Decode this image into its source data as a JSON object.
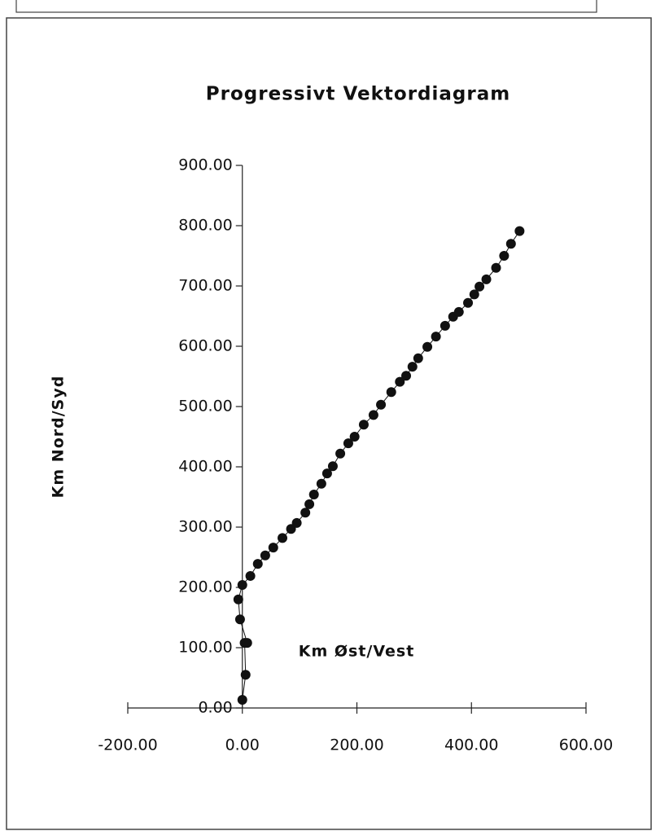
{
  "chart_data": {
    "type": "scatter",
    "title": "Progressivt Vektordiagram",
    "x_label": "Km Øst/Vest",
    "y_label": "Km Nord/Syd",
    "x": [
      0,
      5.7,
      4,
      8.5,
      -4,
      -7,
      0,
      14,
      27,
      40,
      54,
      70,
      85,
      95,
      110,
      117,
      125,
      138,
      148,
      158,
      171,
      185,
      196,
      212,
      229,
      242,
      260,
      275,
      286,
      297,
      307,
      323,
      338,
      354,
      368,
      378,
      394,
      405,
      414,
      426,
      443,
      457,
      469,
      484
    ],
    "values": [
      13.5,
      55,
      108,
      108,
      147,
      180,
      204,
      219,
      239,
      253,
      266,
      282,
      297,
      307,
      324,
      338,
      354,
      372,
      389,
      401,
      422,
      439,
      450,
      470,
      486,
      503,
      524,
      541,
      551,
      566,
      580,
      599,
      616,
      634,
      649,
      657,
      672,
      686,
      699,
      711,
      730,
      750,
      770,
      791
    ],
    "color": "#111111",
    "xlim": [
      -200,
      600
    ],
    "xticks": [
      {
        "value": -200,
        "label": "-200.00"
      },
      {
        "value": 0,
        "label": "0.00"
      },
      {
        "value": 200,
        "label": "200.00"
      },
      {
        "value": 400,
        "label": "400.00"
      },
      {
        "value": 600,
        "label": "600.00"
      }
    ],
    "ylim": [
      0,
      900
    ],
    "yticks": [
      {
        "value": 0,
        "label": "0.00"
      },
      {
        "value": 100,
        "label": "100.00"
      },
      {
        "value": 200,
        "label": "200.00"
      },
      {
        "value": 300,
        "label": "300.00"
      },
      {
        "value": 400,
        "label": "400.00"
      },
      {
        "value": 500,
        "label": "500.00"
      },
      {
        "value": 600,
        "label": "600.00"
      },
      {
        "value": 700,
        "label": "700.00"
      },
      {
        "value": 800,
        "label": "800.00"
      },
      {
        "value": 900,
        "label": "900.00"
      }
    ],
    "grid": false
  }
}
